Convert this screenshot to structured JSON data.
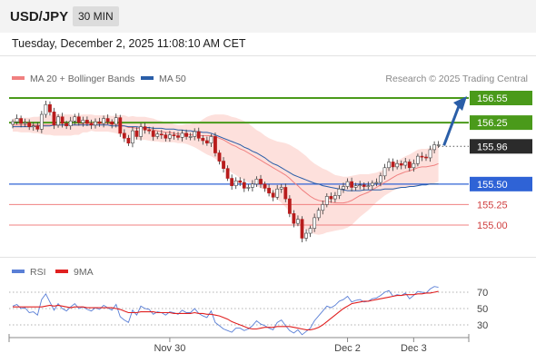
{
  "header": {
    "instrument": "USD/JPY",
    "timeframe": "30 MIN",
    "timestamp": "Tuesday, December 2, 2025 11:08:10 AM CET"
  },
  "legend": {
    "items": [
      {
        "label": "MA 20 + Bollinger Bands",
        "color": "#f08080"
      },
      {
        "label": "MA 50",
        "color": "#2a5ea8"
      }
    ],
    "copyright": "Research © 2025 Trading Central"
  },
  "rsi_legend": {
    "items": [
      {
        "label": "RSI",
        "color": "#5a7fd6"
      },
      {
        "label": "9MA",
        "color": "#e02020"
      }
    ]
  },
  "colors": {
    "resistance": "#4a9a1a",
    "support": "#2f63d6",
    "pivot": "#f08080",
    "bollinger_fill": "#fde0dc",
    "ma20": "#f08080",
    "ma50": "#2a5ea8",
    "bull_candle": "#ffffff",
    "bear_candle": "#b81c1c",
    "arrow": "#2a5ea8",
    "current_price_bg": "#2b2b2b"
  },
  "chart_data": {
    "type": "candlestick",
    "instrument": "USD/JPY",
    "timeframe": "30 MIN",
    "x_tick_labels": [
      "Nov 30",
      "Dec 2",
      "Dec 3"
    ],
    "x_ticks": [
      {
        "label": "Nov 30",
        "index": 38
      },
      {
        "label": "Dec 2",
        "index": 81
      },
      {
        "label": "Dec 3",
        "index": 97
      }
    ],
    "price_axis": {
      "min": 154.5,
      "max": 156.75
    },
    "levels": [
      {
        "value": 156.55,
        "label": "156.55",
        "kind": "resistance"
      },
      {
        "value": 156.25,
        "label": "156.25",
        "kind": "resistance"
      },
      {
        "value": 155.96,
        "label": "155.96",
        "kind": "current"
      },
      {
        "value": 155.5,
        "label": "155.50",
        "kind": "support"
      },
      {
        "value": 155.25,
        "label": "155.25",
        "kind": "pivot"
      },
      {
        "value": 155.0,
        "label": "155.00",
        "kind": "pivot"
      }
    ],
    "projection": {
      "from": 155.96,
      "to": 156.55
    },
    "candles_close": [
      156.26,
      156.3,
      156.24,
      156.25,
      156.2,
      156.21,
      156.17,
      156.35,
      156.47,
      156.38,
      156.22,
      156.32,
      156.24,
      156.21,
      156.27,
      156.32,
      156.25,
      156.28,
      156.24,
      156.22,
      156.26,
      156.24,
      156.3,
      156.26,
      156.23,
      156.31,
      156.12,
      156.06,
      156.0,
      156.15,
      156.08,
      156.2,
      156.16,
      156.15,
      156.08,
      156.11,
      156.1,
      156.06,
      156.1,
      156.09,
      156.07,
      156.12,
      156.08,
      156.08,
      156.14,
      156.06,
      156.03,
      156.0,
      156.08,
      155.88,
      155.78,
      155.69,
      155.57,
      155.48,
      155.54,
      155.52,
      155.45,
      155.46,
      155.5,
      155.56,
      155.5,
      155.45,
      155.39,
      155.34,
      155.44,
      155.46,
      155.32,
      155.14,
      155.02,
      155.07,
      154.84,
      154.9,
      154.96,
      155.09,
      155.18,
      155.25,
      155.35,
      155.32,
      155.36,
      155.44,
      155.47,
      155.53,
      155.46,
      155.48,
      155.49,
      155.47,
      155.48,
      155.51,
      155.52,
      155.6,
      155.7,
      155.77,
      155.71,
      155.75,
      155.73,
      155.77,
      155.7,
      155.75,
      155.84,
      155.83,
      155.82,
      155.92,
      155.98,
      155.98
    ],
    "ma20": [
      156.22,
      156.22,
      156.22,
      156.22,
      156.22,
      156.22,
      156.22,
      156.22,
      156.22,
      156.22,
      156.22,
      156.22,
      156.22,
      156.22,
      156.22,
      156.22,
      156.22,
      156.24,
      156.24,
      156.25,
      156.24,
      156.24,
      156.24,
      156.24,
      156.23,
      156.23,
      156.22,
      156.21,
      156.19,
      156.19,
      156.18,
      156.18,
      156.18,
      156.17,
      156.16,
      156.15,
      156.14,
      156.13,
      156.13,
      156.12,
      156.11,
      156.11,
      156.11,
      156.1,
      156.1,
      156.09,
      156.09,
      156.09,
      156.09,
      156.08,
      156.06,
      156.04,
      156.01,
      155.98,
      155.96,
      155.93,
      155.91,
      155.88,
      155.85,
      155.82,
      155.79,
      155.76,
      155.73,
      155.7,
      155.67,
      155.64,
      155.61,
      155.57,
      155.52,
      155.48,
      155.43,
      155.39,
      155.35,
      155.32,
      155.3,
      155.29,
      155.29,
      155.28,
      155.27,
      155.27,
      155.27,
      155.28,
      155.3,
      155.33,
      155.36,
      155.38,
      155.4,
      155.43,
      155.46,
      155.49,
      155.52,
      155.55,
      155.58,
      155.61,
      155.63,
      155.65,
      155.66,
      155.68,
      155.7,
      155.71,
      155.71,
      155.72,
      155.73,
      155.75
    ],
    "ma50": [
      156.2,
      156.2,
      156.2,
      156.2,
      156.2,
      156.2,
      156.21,
      156.21,
      156.21,
      156.21,
      156.22,
      156.22,
      156.22,
      156.22,
      156.22,
      156.22,
      156.22,
      156.22,
      156.22,
      156.22,
      156.22,
      156.22,
      156.22,
      156.22,
      156.21,
      156.21,
      156.21,
      156.21,
      156.2,
      156.2,
      156.2,
      156.19,
      156.19,
      156.19,
      156.18,
      156.18,
      156.18,
      156.17,
      156.17,
      156.17,
      156.16,
      156.16,
      156.15,
      156.15,
      156.14,
      156.14,
      156.13,
      156.13,
      156.12,
      156.1,
      156.08,
      156.06,
      156.04,
      156.02,
      156.0,
      155.98,
      155.95,
      155.93,
      155.9,
      155.88,
      155.85,
      155.82,
      155.78,
      155.75,
      155.73,
      155.7,
      155.67,
      155.64,
      155.61,
      155.59,
      155.57,
      155.55,
      155.53,
      155.51,
      155.5,
      155.48,
      155.47,
      155.46,
      155.45,
      155.44,
      155.43,
      155.42,
      155.42,
      155.42,
      155.42,
      155.43,
      155.43,
      155.43,
      155.43,
      155.43,
      155.44,
      155.44,
      155.44,
      155.45,
      155.46,
      155.46,
      155.47,
      155.47,
      155.48,
      155.49,
      155.49,
      155.5,
      155.5,
      155.5
    ],
    "bollinger_width": [
      0.08,
      0.08,
      0.09,
      0.09,
      0.09,
      0.1,
      0.1,
      0.11,
      0.12,
      0.12,
      0.13,
      0.13,
      0.13,
      0.13,
      0.13,
      0.12,
      0.12,
      0.11,
      0.11,
      0.1,
      0.1,
      0.1,
      0.1,
      0.1,
      0.1,
      0.11,
      0.12,
      0.13,
      0.13,
      0.14,
      0.14,
      0.14,
      0.14,
      0.14,
      0.14,
      0.13,
      0.13,
      0.12,
      0.12,
      0.11,
      0.11,
      0.11,
      0.12,
      0.13,
      0.15,
      0.17,
      0.2,
      0.23,
      0.25,
      0.27,
      0.29,
      0.31,
      0.33,
      0.34,
      0.35,
      0.36,
      0.36,
      0.36,
      0.35,
      0.34,
      0.34,
      0.33,
      0.33,
      0.34,
      0.35,
      0.37,
      0.39,
      0.41,
      0.43,
      0.44,
      0.45,
      0.45,
      0.44,
      0.43,
      0.42,
      0.4,
      0.38,
      0.36,
      0.34,
      0.33,
      0.32,
      0.31,
      0.3,
      0.28,
      0.26,
      0.24,
      0.22,
      0.2,
      0.18,
      0.17,
      0.16,
      0.16,
      0.16,
      0.17,
      0.18,
      0.19,
      0.2,
      0.21,
      0.22,
      0.22,
      0.22,
      0.22,
      0.22,
      0.22
    ],
    "rsi": {
      "levels": [
        70,
        50,
        30
      ],
      "axis": [
        20,
        80
      ],
      "rsi": [
        53,
        55,
        50,
        51,
        45,
        46,
        42,
        61,
        68,
        58,
        48,
        56,
        50,
        47,
        52,
        56,
        50,
        52,
        49,
        47,
        51,
        49,
        54,
        51,
        48,
        55,
        40,
        36,
        33,
        48,
        42,
        53,
        50,
        49,
        43,
        46,
        45,
        42,
        46,
        45,
        43,
        48,
        45,
        45,
        50,
        44,
        41,
        39,
        47,
        33,
        29,
        25,
        23,
        21,
        26,
        26,
        23,
        25,
        29,
        35,
        31,
        29,
        26,
        24,
        33,
        36,
        29,
        23,
        20,
        24,
        18,
        22,
        26,
        35,
        41,
        47,
        53,
        51,
        54,
        59,
        61,
        65,
        58,
        60,
        61,
        58,
        59,
        62,
        63,
        66,
        70,
        72,
        65,
        67,
        66,
        69,
        62,
        66,
        71,
        70,
        69,
        74,
        77,
        76
      ],
      "ma9": [
        52,
        52,
        52,
        52,
        52,
        52,
        52,
        52,
        53,
        54,
        53,
        54,
        53,
        52,
        51,
        52,
        52,
        52,
        51,
        51,
        51,
        51,
        51,
        51,
        51,
        50,
        49,
        47,
        45,
        45,
        45,
        46,
        46,
        46,
        46,
        45,
        45,
        45,
        45,
        44,
        44,
        44,
        44,
        44,
        45,
        44,
        44,
        43,
        43,
        42,
        41,
        39,
        37,
        34,
        32,
        30,
        28,
        26,
        25,
        25,
        26,
        27,
        27,
        27,
        28,
        28,
        28,
        28,
        27,
        26,
        25,
        24,
        24,
        25,
        27,
        30,
        34,
        38,
        42,
        46,
        50,
        53,
        56,
        57,
        58,
        59,
        59,
        60,
        61,
        62,
        63,
        64,
        65,
        66,
        66,
        67,
        67,
        67,
        68,
        68,
        69,
        69,
        70,
        71
      ]
    }
  }
}
